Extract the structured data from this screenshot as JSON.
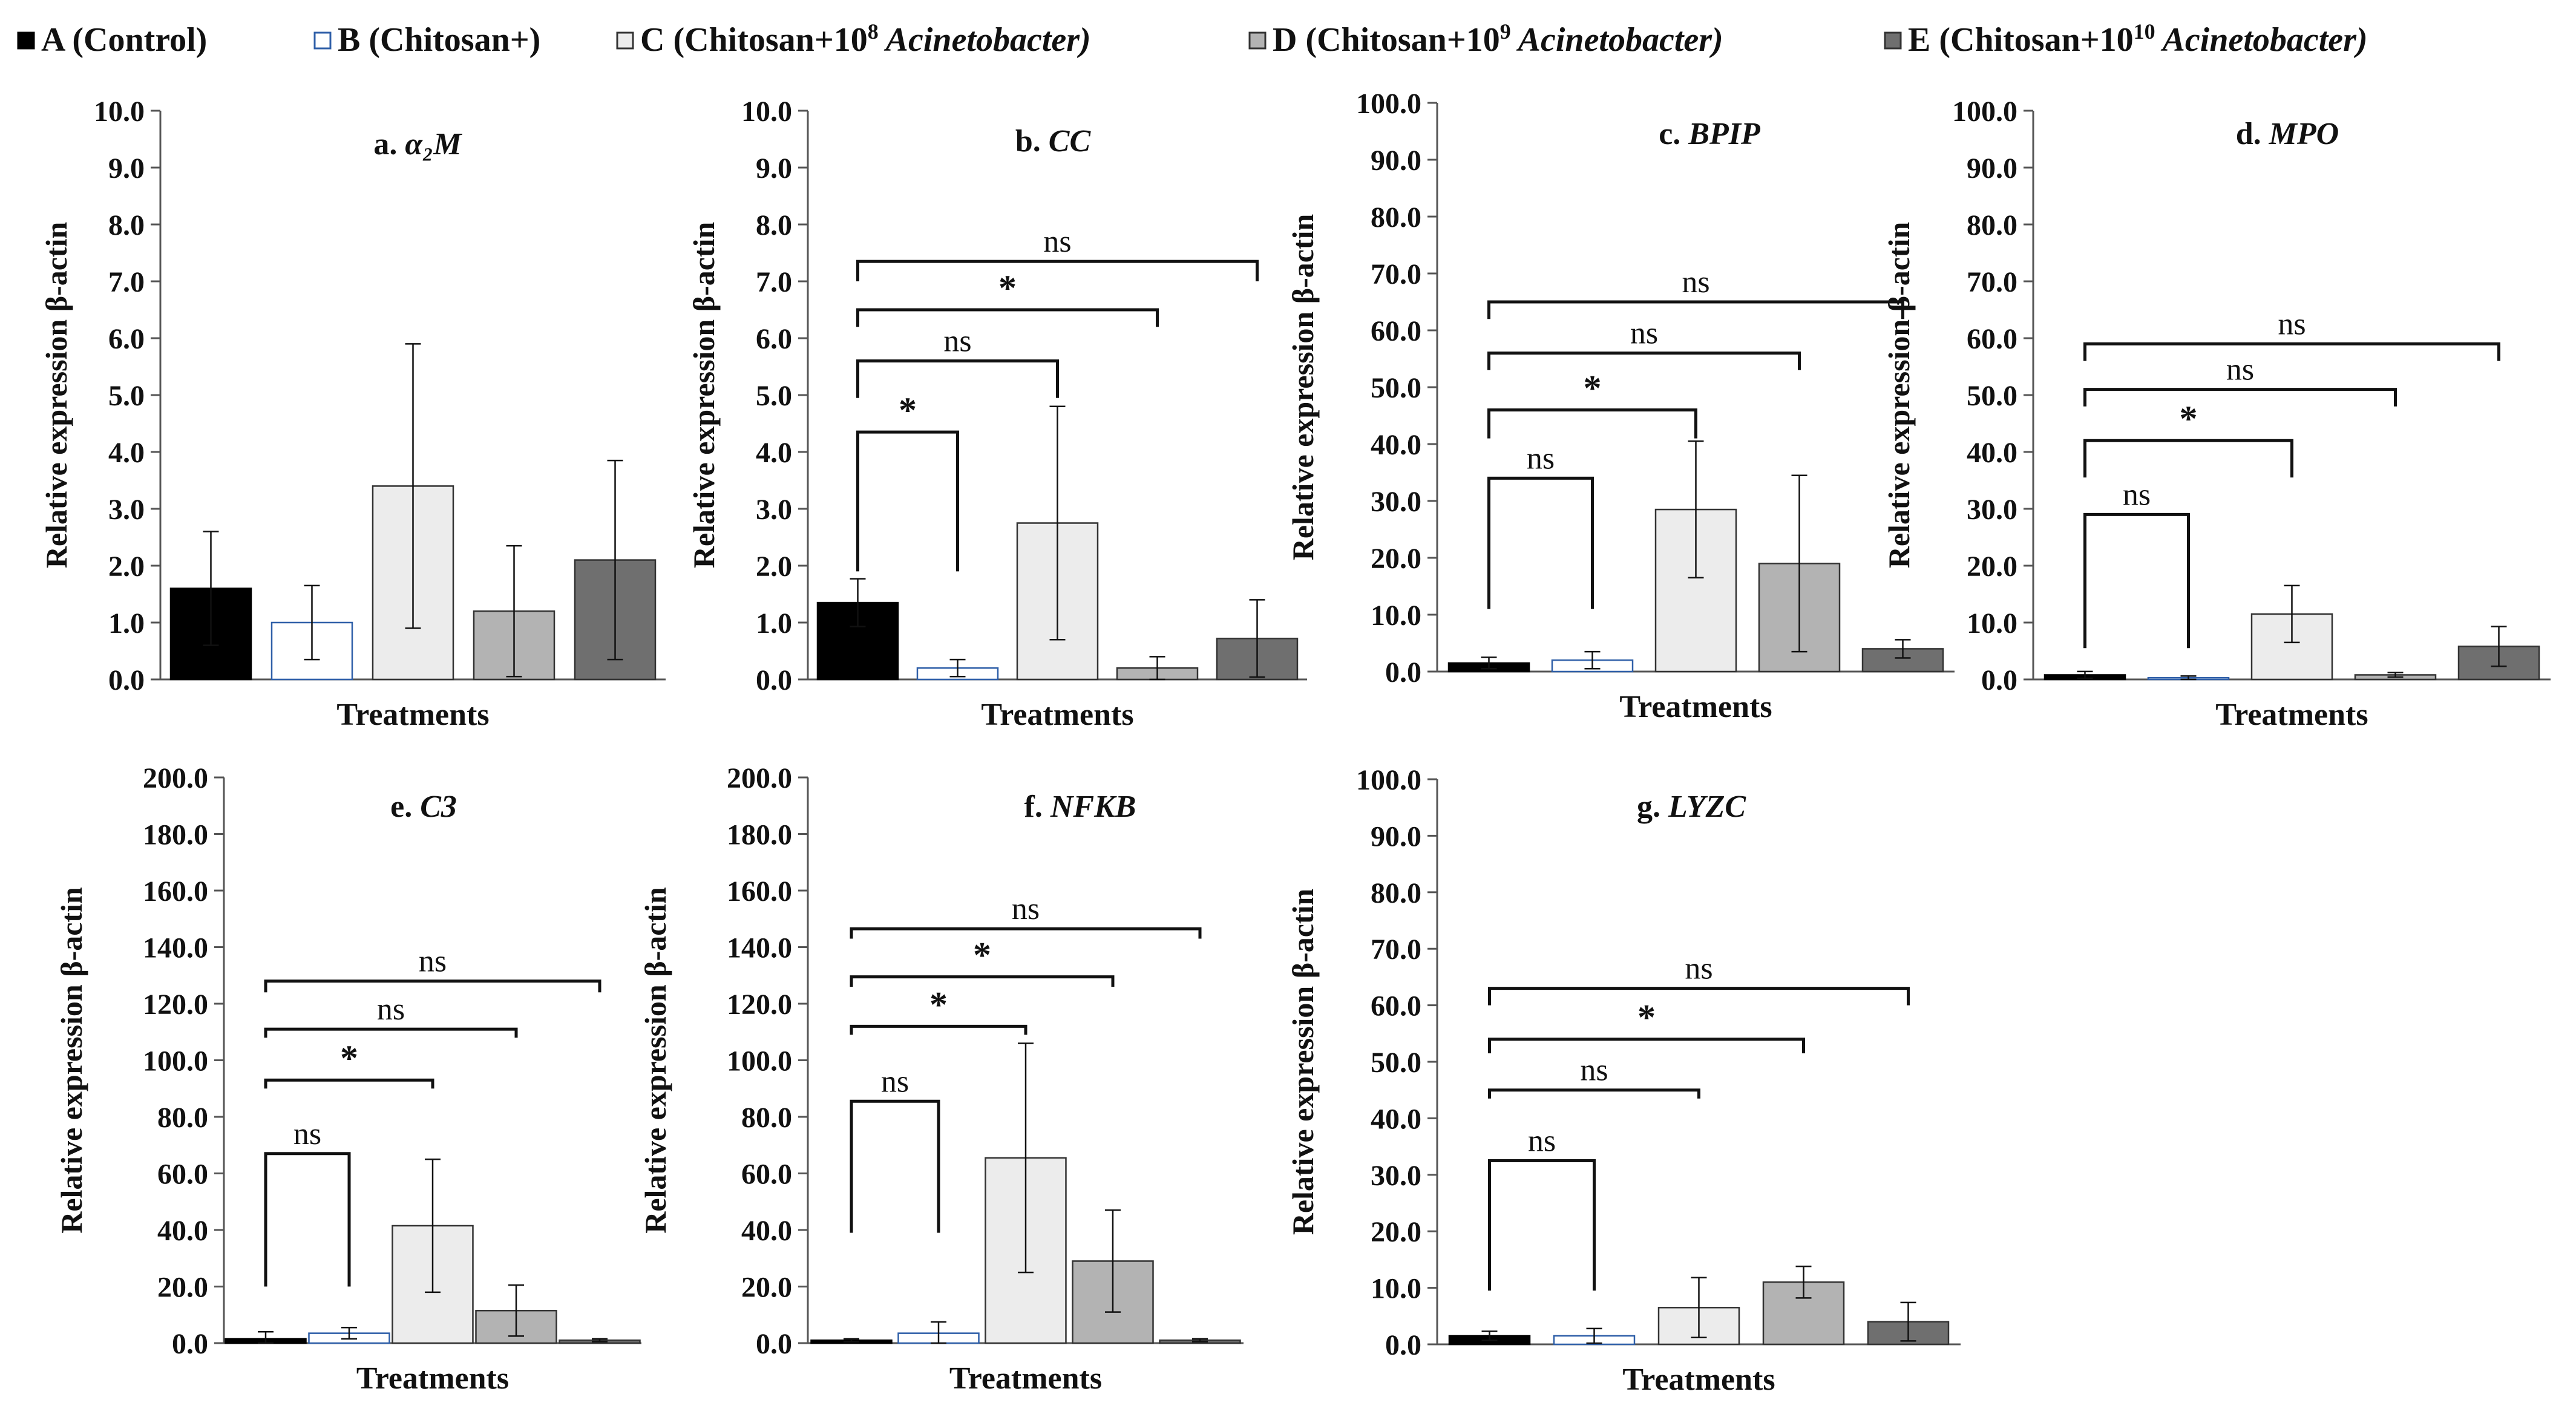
{
  "figure": {
    "legend": [
      {
        "key": "A",
        "label": "A (Control)",
        "sup": "",
        "tail": "",
        "color": "#000000",
        "border": "#000000"
      },
      {
        "key": "B",
        "label": "B (Chitosan+)",
        "sup": "",
        "tail": "",
        "color": "#ffffff",
        "border": "#2f5fa8"
      },
      {
        "key": "C",
        "label": "C (Chitosan+10",
        "sup": "8",
        "tail": " Acinetobacter)",
        "color": "#ececec",
        "border": "#333333"
      },
      {
        "key": "D",
        "label": "D (Chitosan+10",
        "sup": "9",
        "tail": " Acinetobacter)",
        "color": "#b3b3b3",
        "border": "#333333"
      },
      {
        "key": "E",
        "label": "E (Chitosan+10",
        "sup": "10",
        "tail": " Acinetobacter)",
        "color": "#6f6f6f",
        "border": "#333333"
      }
    ]
  },
  "chart_data": [
    {
      "type": "bar",
      "title": "a. α₂M",
      "prefix": "a. ",
      "gene": "α₂M",
      "xlabel": "Treatments",
      "ylabel": "Relative expression β-actin",
      "categories": [
        "A",
        "B",
        "C",
        "D",
        "E"
      ],
      "ylim": [
        0,
        10
      ],
      "ytick_step": 1,
      "values": [
        1.6,
        1.0,
        3.4,
        1.2,
        2.1
      ],
      "errors": [
        1.0,
        0.65,
        2.5,
        1.15,
        1.75
      ],
      "comparisons": []
    },
    {
      "type": "bar",
      "title": "b. CC",
      "prefix": "b. ",
      "gene": "CC",
      "xlabel": "Treatments",
      "ylabel": "Relative expression β-actin",
      "categories": [
        "A",
        "B",
        "C",
        "D",
        "E"
      ],
      "ylim": [
        0,
        10
      ],
      "ytick_step": 1,
      "values": [
        1.35,
        0.2,
        2.75,
        0.2,
        0.72
      ],
      "errors": [
        0.42,
        0.15,
        2.05,
        0.2,
        0.68
      ],
      "comparisons": [
        {
          "to": "B",
          "label": "*",
          "y": 4.35,
          "drop_to": 1.9
        },
        {
          "to": "C",
          "label": "ns",
          "y": 5.6,
          "drop_to": 4.95
        },
        {
          "to": "D",
          "label": "*",
          "y": 6.5,
          "drop_to": 6.2
        },
        {
          "to": "E",
          "label": "ns",
          "y": 7.35,
          "drop_to": 7.0
        }
      ]
    },
    {
      "type": "bar",
      "title": "c. BPIP",
      "prefix": "c. ",
      "gene": "BPIP",
      "xlabel": "Treatments",
      "ylabel": "Relative expression β-actin",
      "categories": [
        "A",
        "B",
        "C",
        "D",
        "E"
      ],
      "ylim": [
        0,
        100
      ],
      "ytick_step": 10,
      "values": [
        1.5,
        2.0,
        28.5,
        19.0,
        4.0
      ],
      "errors": [
        1.0,
        1.5,
        12.0,
        15.5,
        1.6
      ],
      "comparisons": [
        {
          "to": "B",
          "label": "ns",
          "y": 34.0,
          "drop_to": 11.0
        },
        {
          "to": "C",
          "label": "*",
          "y": 46.0,
          "drop_to": 41.0
        },
        {
          "to": "D",
          "label": "ns",
          "y": 56.0,
          "drop_to": 53.0
        },
        {
          "to": "E",
          "label": "ns",
          "y": 65.0,
          "drop_to": 62.0
        }
      ]
    },
    {
      "type": "bar",
      "title": "d. MPO",
      "prefix": "d. ",
      "gene": "MPO",
      "xlabel": "Treatments",
      "ylabel": "Relative expression β-actin",
      "categories": [
        "A",
        "B",
        "C",
        "D",
        "E"
      ],
      "ylim": [
        0,
        100
      ],
      "ytick_step": 10,
      "values": [
        0.8,
        0.3,
        11.5,
        0.8,
        5.8
      ],
      "errors": [
        0.6,
        0.3,
        5.0,
        0.4,
        3.5
      ],
      "comparisons": [
        {
          "to": "B",
          "label": "ns",
          "y": 29.0,
          "drop_to": 5.5
        },
        {
          "to": "C",
          "label": "*",
          "y": 42.0,
          "drop_to": 35.5
        },
        {
          "to": "D",
          "label": "ns",
          "y": 51.0,
          "drop_to": 48.0
        },
        {
          "to": "E",
          "label": "ns",
          "y": 59.0,
          "drop_to": 56.0
        }
      ]
    },
    {
      "type": "bar",
      "title": "e. C3",
      "prefix": "e. ",
      "gene": "C3",
      "xlabel": "Treatments",
      "ylabel": "Relative expression β-actin",
      "categories": [
        "A",
        "B",
        "C",
        "D",
        "E"
      ],
      "ylim": [
        0,
        200
      ],
      "ytick_step": 20,
      "values": [
        1.5,
        3.5,
        41.5,
        11.5,
        1.0
      ],
      "errors": [
        2.5,
        2.0,
        23.5,
        9.0,
        0.5
      ],
      "comparisons": [
        {
          "to": "B",
          "label": "ns",
          "y": 67.0,
          "drop_to": 20.0
        },
        {
          "to": "C",
          "label": "*",
          "y": 93.0,
          "drop_to": 90.0
        },
        {
          "to": "D",
          "label": "ns",
          "y": 111.0,
          "drop_to": 108.0
        },
        {
          "to": "E",
          "label": "ns",
          "y": 128.0,
          "drop_to": 124.0
        }
      ]
    },
    {
      "type": "bar",
      "title": "f. NFKB",
      "prefix": "f. ",
      "gene": "NFKB",
      "xlabel": "Treatments",
      "ylabel": "Relative expression β-actin",
      "categories": [
        "A",
        "B",
        "C",
        "D",
        "E"
      ],
      "ylim": [
        0,
        200
      ],
      "ytick_step": 20,
      "values": [
        1.0,
        3.5,
        65.5,
        29.0,
        1.0
      ],
      "errors": [
        0.5,
        4.0,
        40.5,
        18.0,
        0.5
      ],
      "comparisons": [
        {
          "to": "B",
          "label": "ns",
          "y": 85.5,
          "drop_to": 39.0
        },
        {
          "to": "C",
          "label": "*",
          "y": 112.0,
          "drop_to": 109.0
        },
        {
          "to": "D",
          "label": "*",
          "y": 129.5,
          "drop_to": 126.0
        },
        {
          "to": "E",
          "label": "ns",
          "y": 146.5,
          "drop_to": 143.0
        }
      ]
    },
    {
      "type": "bar",
      "title": "g. LYZC",
      "prefix": "g. ",
      "gene": "LYZC",
      "xlabel": "Treatments",
      "ylabel": "Relative expression β-actin",
      "categories": [
        "A",
        "B",
        "C",
        "D",
        "E"
      ],
      "ylim": [
        0,
        100
      ],
      "ytick_step": 10,
      "values": [
        1.5,
        1.5,
        6.5,
        11.0,
        4.0
      ],
      "errors": [
        0.8,
        1.3,
        5.3,
        2.8,
        3.4
      ],
      "comparisons": [
        {
          "to": "B",
          "label": "ns",
          "y": 32.5,
          "drop_to": 9.5
        },
        {
          "to": "C",
          "label": "ns",
          "y": 45.0,
          "drop_to": 43.5
        },
        {
          "to": "D",
          "label": "*",
          "y": 54.0,
          "drop_to": 51.5
        },
        {
          "to": "E",
          "label": "ns",
          "y": 63.0,
          "drop_to": 60.0
        }
      ]
    }
  ]
}
